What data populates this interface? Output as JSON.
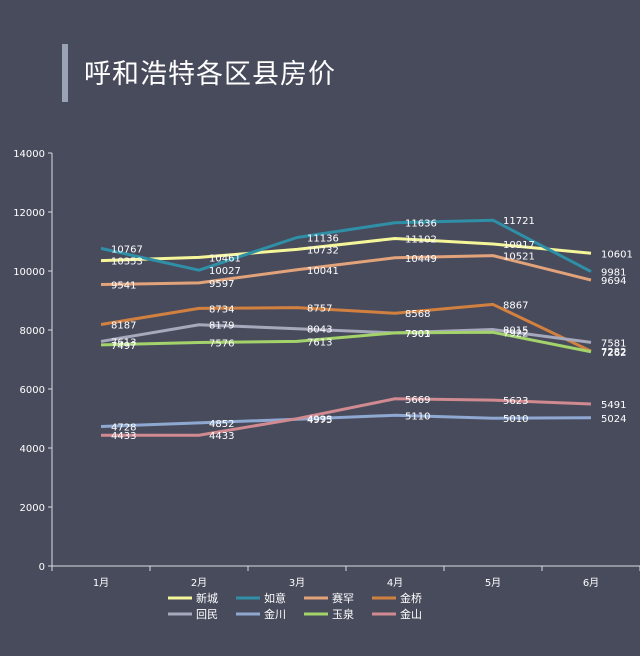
{
  "title": "呼和浩特各区县房价",
  "chart_data": {
    "type": "line",
    "categories": [
      "1月",
      "2月",
      "3月",
      "4月",
      "5月",
      "6月"
    ],
    "ylim": [
      0,
      14000
    ],
    "yticks": [
      0,
      2000,
      4000,
      6000,
      8000,
      10000,
      12000,
      14000
    ],
    "grid": false,
    "legend_position": "bottom",
    "series": [
      {
        "name": "新城",
        "color": "#f5f59a",
        "values": [
          10353,
          10461,
          10732,
          11102,
          10917,
          10601
        ]
      },
      {
        "name": "如意",
        "color": "#2f8fa6",
        "values": [
          10767,
          10027,
          11136,
          11636,
          11721,
          9981
        ]
      },
      {
        "name": "赛罕",
        "color": "#e2a27a",
        "values": [
          9541,
          9597,
          10041,
          10449,
          10521,
          9694
        ]
      },
      {
        "name": "金桥",
        "color": "#d2803f",
        "values": [
          8187,
          8734,
          8757,
          8568,
          8867,
          7282
        ]
      },
      {
        "name": "回民",
        "color": "#a6a8bb",
        "values": [
          7613,
          8179,
          8043,
          7901,
          8015,
          7581
        ]
      },
      {
        "name": "金川",
        "color": "#8fa8d2",
        "values": [
          4728,
          4852,
          4975,
          5110,
          5010,
          5024
        ]
      },
      {
        "name": "玉泉",
        "color": "#a3d36a",
        "values": [
          7497,
          7576,
          7613,
          7903,
          7922,
          7262
        ]
      },
      {
        "name": "金山",
        "color": "#d08a90",
        "values": [
          4433,
          4433,
          4993,
          5669,
          5623,
          5491
        ]
      }
    ]
  }
}
